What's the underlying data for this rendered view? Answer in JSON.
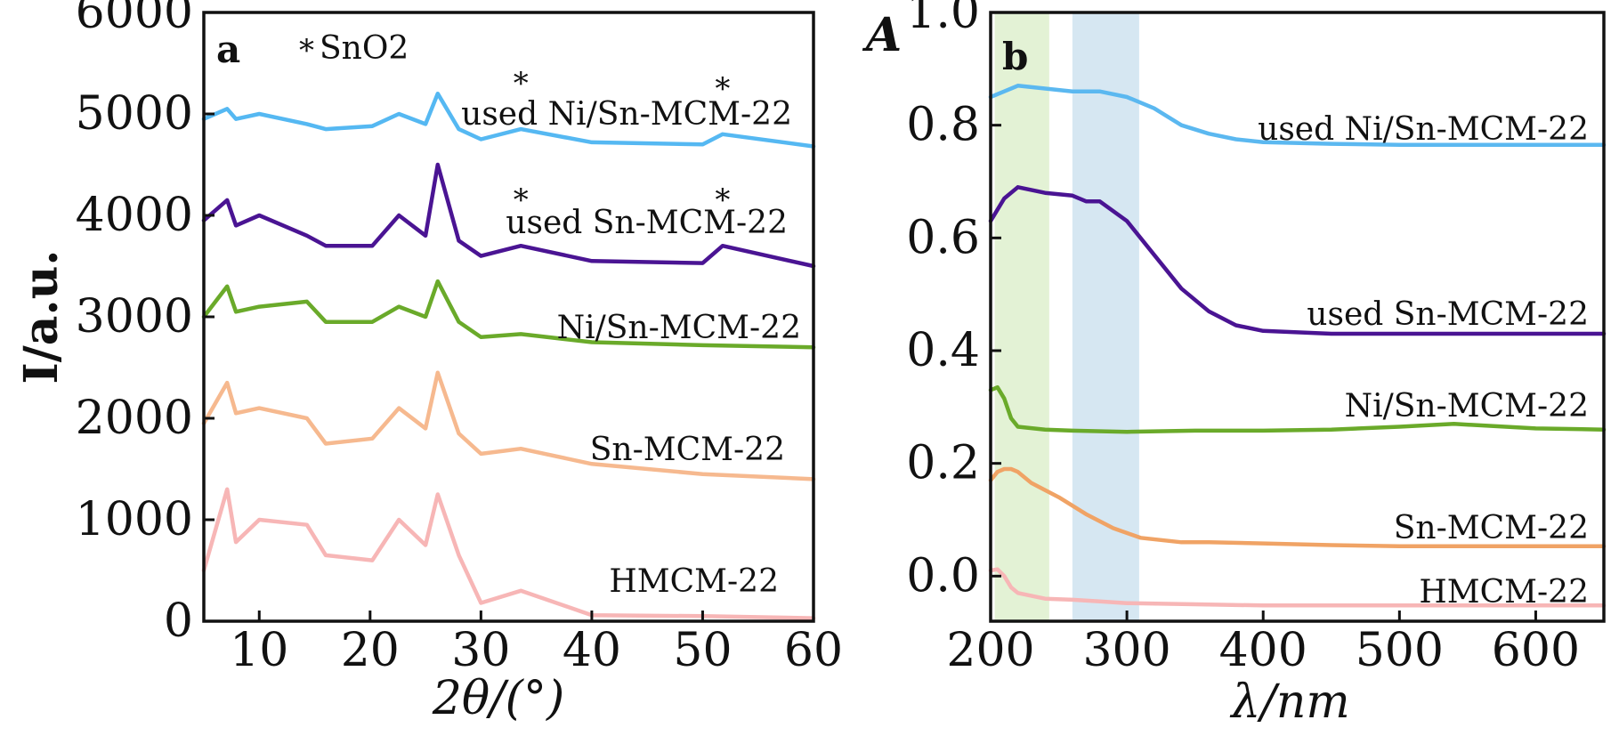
{
  "chart_data": [
    {
      "panel": "a",
      "type": "line",
      "xlabel": "2θ/(°)",
      "ylabel": "I/a.u.",
      "xlim": [
        5,
        60
      ],
      "ylim": [
        0,
        6000
      ],
      "xticks": [
        10,
        20,
        30,
        40,
        50,
        60
      ],
      "yticks": [
        0,
        1000,
        2000,
        3000,
        4000,
        5000,
        6000
      ],
      "legend_text": "SnO2",
      "legend_symbol": "*",
      "peaks_2theta": [
        7.1,
        7.9,
        10.0,
        14.3,
        16.0,
        20.2,
        22.6,
        23.7,
        25.0,
        26.1,
        28.0,
        33.6,
        51.8
      ],
      "series": [
        {
          "name": "HMCM-22",
          "color": "#f7b6b6",
          "x": [
            5,
            7.1,
            7.9,
            10.0,
            14.3,
            16.0,
            20.2,
            22.6,
            25.0,
            26.1,
            28.0,
            30.0,
            33.6,
            40.0,
            50.0,
            60.0
          ],
          "values": [
            500,
            1300,
            780,
            1000,
            950,
            650,
            600,
            1000,
            750,
            1250,
            650,
            180,
            300,
            60,
            50,
            30
          ]
        },
        {
          "name": "Sn-MCM-22",
          "color": "#f6b98f",
          "x": [
            5,
            7.1,
            7.9,
            10.0,
            14.3,
            16.0,
            20.2,
            22.6,
            25.0,
            26.1,
            28.0,
            30.0,
            33.6,
            40.0,
            50.0,
            60.0
          ],
          "values": [
            1950,
            2350,
            2050,
            2100,
            2000,
            1750,
            1800,
            2100,
            1900,
            2450,
            1850,
            1650,
            1700,
            1550,
            1450,
            1400
          ]
        },
        {
          "name": "Ni/Sn-MCM-22",
          "color": "#6aaa2a",
          "x": [
            5,
            7.1,
            7.9,
            10.0,
            14.3,
            16.0,
            20.2,
            22.6,
            25.0,
            26.1,
            28.0,
            30.0,
            33.6,
            40.0,
            50.0,
            60.0
          ],
          "values": [
            3000,
            3300,
            3050,
            3100,
            3150,
            2950,
            2950,
            3100,
            3000,
            3350,
            2950,
            2800,
            2830,
            2750,
            2720,
            2700
          ]
        },
        {
          "name": "used Sn-MCM-22",
          "color": "#4a1493",
          "x": [
            5,
            7.1,
            7.9,
            10.0,
            14.3,
            16.0,
            20.2,
            22.6,
            25.0,
            26.1,
            28.0,
            30.0,
            33.6,
            40.0,
            50.0,
            51.8,
            60.0
          ],
          "values": [
            3950,
            4150,
            3900,
            4000,
            3800,
            3700,
            3700,
            4000,
            3800,
            4500,
            3750,
            3600,
            3700,
            3550,
            3530,
            3700,
            3500
          ]
        },
        {
          "name": "used Ni/Sn-MCM-22",
          "color": "#55b8f2",
          "x": [
            5,
            7.1,
            7.9,
            10.0,
            14.3,
            16.0,
            20.2,
            22.6,
            25.0,
            26.1,
            28.0,
            30.0,
            33.6,
            40.0,
            50.0,
            51.8,
            60.0
          ],
          "values": [
            4950,
            5050,
            4950,
            5000,
            4900,
            4850,
            4880,
            5000,
            4900,
            5200,
            4850,
            4750,
            4850,
            4720,
            4700,
            4800,
            4680
          ]
        }
      ],
      "markers": [
        {
          "series": "used Ni/Sn-MCM-22",
          "x": 33.6
        },
        {
          "series": "used Ni/Sn-MCM-22",
          "x": 51.8
        },
        {
          "series": "used Sn-MCM-22",
          "x": 33.6
        },
        {
          "series": "used Sn-MCM-22",
          "x": 51.8
        }
      ]
    },
    {
      "panel": "b",
      "type": "line",
      "xlabel": "λ/nm",
      "ylabel": "A",
      "xlim": [
        200,
        650
      ],
      "ylim": [
        -0.08,
        1.0
      ],
      "xticks": [
        200,
        300,
        400,
        500,
        600
      ],
      "yticks": [
        0.0,
        0.2,
        0.4,
        0.6,
        0.8,
        1.0
      ],
      "ytick_labels": [
        "0.0",
        "0.2",
        "0.4",
        "0.6",
        "0.8",
        "1.0"
      ],
      "bands": [
        {
          "from": 203,
          "to": 243,
          "color": "#e3f2d5"
        },
        {
          "from": 260,
          "to": 309,
          "color": "#d6e7f2"
        }
      ],
      "series": [
        {
          "name": "used Ni/Sn-MCM-22",
          "color": "#5bb8f0",
          "x": [
            200,
            210,
            220,
            240,
            260,
            280,
            300,
            320,
            340,
            360,
            380,
            400,
            450,
            500,
            550,
            600,
            650
          ],
          "values": [
            0.85,
            0.86,
            0.87,
            0.865,
            0.86,
            0.86,
            0.85,
            0.83,
            0.8,
            0.785,
            0.775,
            0.77,
            0.767,
            0.765,
            0.765,
            0.765,
            0.765
          ]
        },
        {
          "name": "used Sn-MCM-22",
          "color": "#4a1493",
          "x": [
            200,
            210,
            220,
            240,
            260,
            270,
            280,
            300,
            320,
            340,
            360,
            380,
            400,
            450,
            500,
            550,
            600,
            650
          ],
          "values": [
            0.63,
            0.67,
            0.69,
            0.68,
            0.675,
            0.665,
            0.665,
            0.63,
            0.57,
            0.51,
            0.47,
            0.445,
            0.435,
            0.43,
            0.43,
            0.43,
            0.43,
            0.43
          ]
        },
        {
          "name": "Ni/Sn-MCM-22",
          "color": "#6aaa2a",
          "x": [
            200,
            205,
            210,
            215,
            220,
            240,
            260,
            300,
            350,
            400,
            450,
            500,
            540,
            600,
            650
          ],
          "values": [
            0.33,
            0.335,
            0.315,
            0.28,
            0.265,
            0.26,
            0.258,
            0.256,
            0.258,
            0.258,
            0.26,
            0.265,
            0.27,
            0.262,
            0.26
          ]
        },
        {
          "name": "Sn-MCM-22",
          "color": "#f0a365",
          "x": [
            200,
            205,
            210,
            215,
            220,
            230,
            250,
            270,
            290,
            310,
            340,
            360,
            400,
            450,
            500,
            550,
            600,
            650
          ],
          "values": [
            0.17,
            0.185,
            0.19,
            0.19,
            0.185,
            0.165,
            0.14,
            0.11,
            0.085,
            0.068,
            0.06,
            0.06,
            0.058,
            0.055,
            0.053,
            0.053,
            0.053,
            0.053
          ]
        },
        {
          "name": "HMCM-22",
          "color": "#f7b6b6",
          "x": [
            200,
            205,
            210,
            215,
            220,
            240,
            260,
            280,
            300,
            350,
            400,
            450,
            500,
            550,
            600,
            650
          ],
          "values": [
            0.01,
            0.012,
            0.0,
            -0.02,
            -0.03,
            -0.04,
            -0.042,
            -0.045,
            -0.048,
            -0.05,
            -0.052,
            -0.052,
            -0.052,
            -0.052,
            -0.052,
            -0.052
          ]
        }
      ]
    }
  ]
}
